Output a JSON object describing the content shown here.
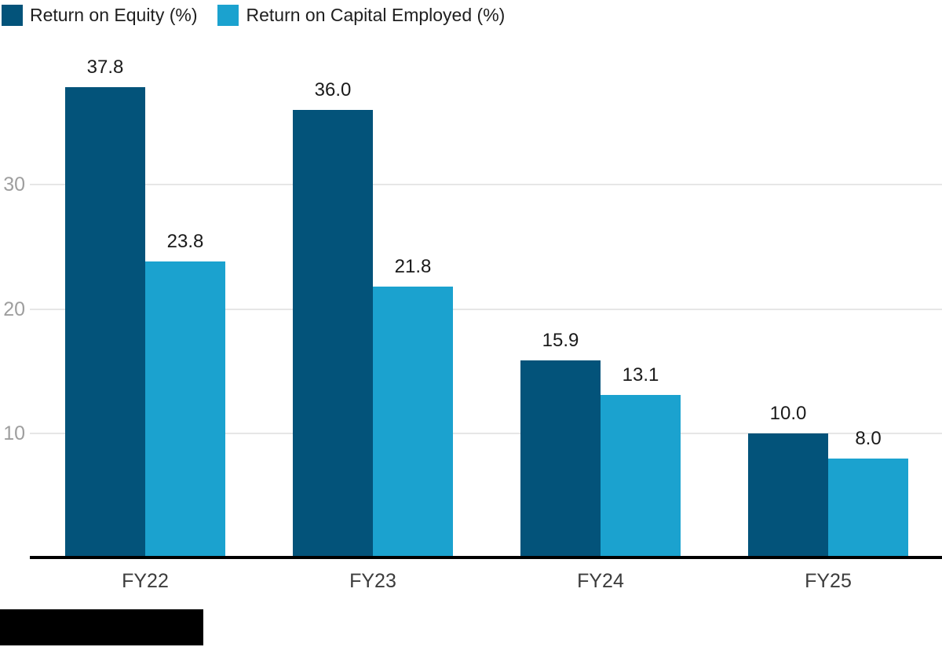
{
  "chart_data": {
    "type": "bar",
    "title": "",
    "xlabel": "",
    "ylabel": "",
    "categories": [
      "FY22",
      "FY23",
      "FY24",
      "FY25"
    ],
    "series": [
      {
        "name": "Return on Equity (%)",
        "color": "#03537A",
        "values": [
          37.8,
          36.0,
          15.9,
          10.0
        ]
      },
      {
        "name": "Return on Capital Employed (%)",
        "color": "#1BA2CF",
        "values": [
          23.8,
          21.8,
          13.1,
          8.0
        ]
      }
    ],
    "yticks": [
      10,
      20,
      30
    ],
    "ylim": [
      0,
      40
    ],
    "grid": true,
    "legend_position": "top-left",
    "value_labels": true
  },
  "colors": {
    "series_dark": "#03537A",
    "series_light": "#1BA2CF",
    "gridline": "#e6e6e6",
    "tick_text": "#9e9e9e",
    "axis_line": "#000000",
    "label_text": "#1a1a1a"
  }
}
